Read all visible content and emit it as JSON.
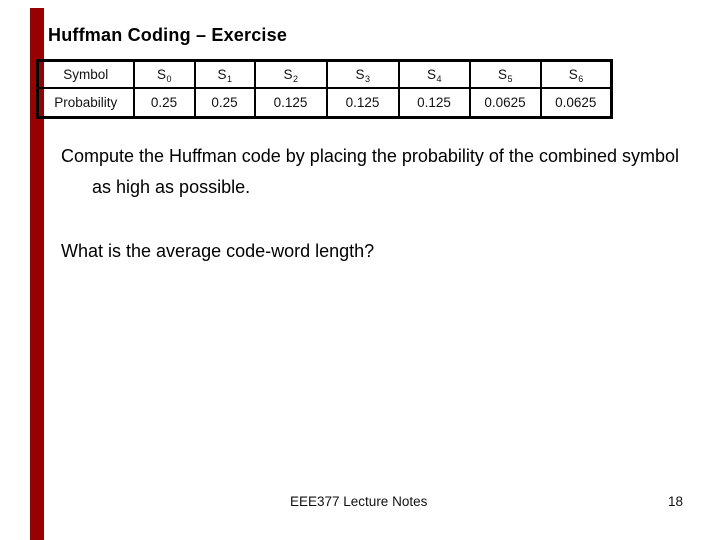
{
  "slide": {
    "title": "Huffman Coding – Exercise",
    "accent_color": "#990000",
    "body_paragraph": "Compute the Huffman code by placing the probability of the combined symbol\nas high as possible.",
    "question": "What is the average code-word length?",
    "footer": "EEE377 Lecture Notes",
    "page_number": "18"
  },
  "table": {
    "row_labels": [
      "Symbol",
      "Probability"
    ],
    "symbols": [
      {
        "base": "S",
        "sub": "0"
      },
      {
        "base": "S",
        "sub": "1"
      },
      {
        "base": "S",
        "sub": "2"
      },
      {
        "base": "S",
        "sub": "3"
      },
      {
        "base": "S",
        "sub": "4"
      },
      {
        "base": "S",
        "sub": "5"
      },
      {
        "base": "S",
        "sub": "6"
      }
    ],
    "probabilities": [
      "0.25",
      "0.25",
      "0.125",
      "0.125",
      "0.125",
      "0.0625",
      "0.0625"
    ]
  }
}
